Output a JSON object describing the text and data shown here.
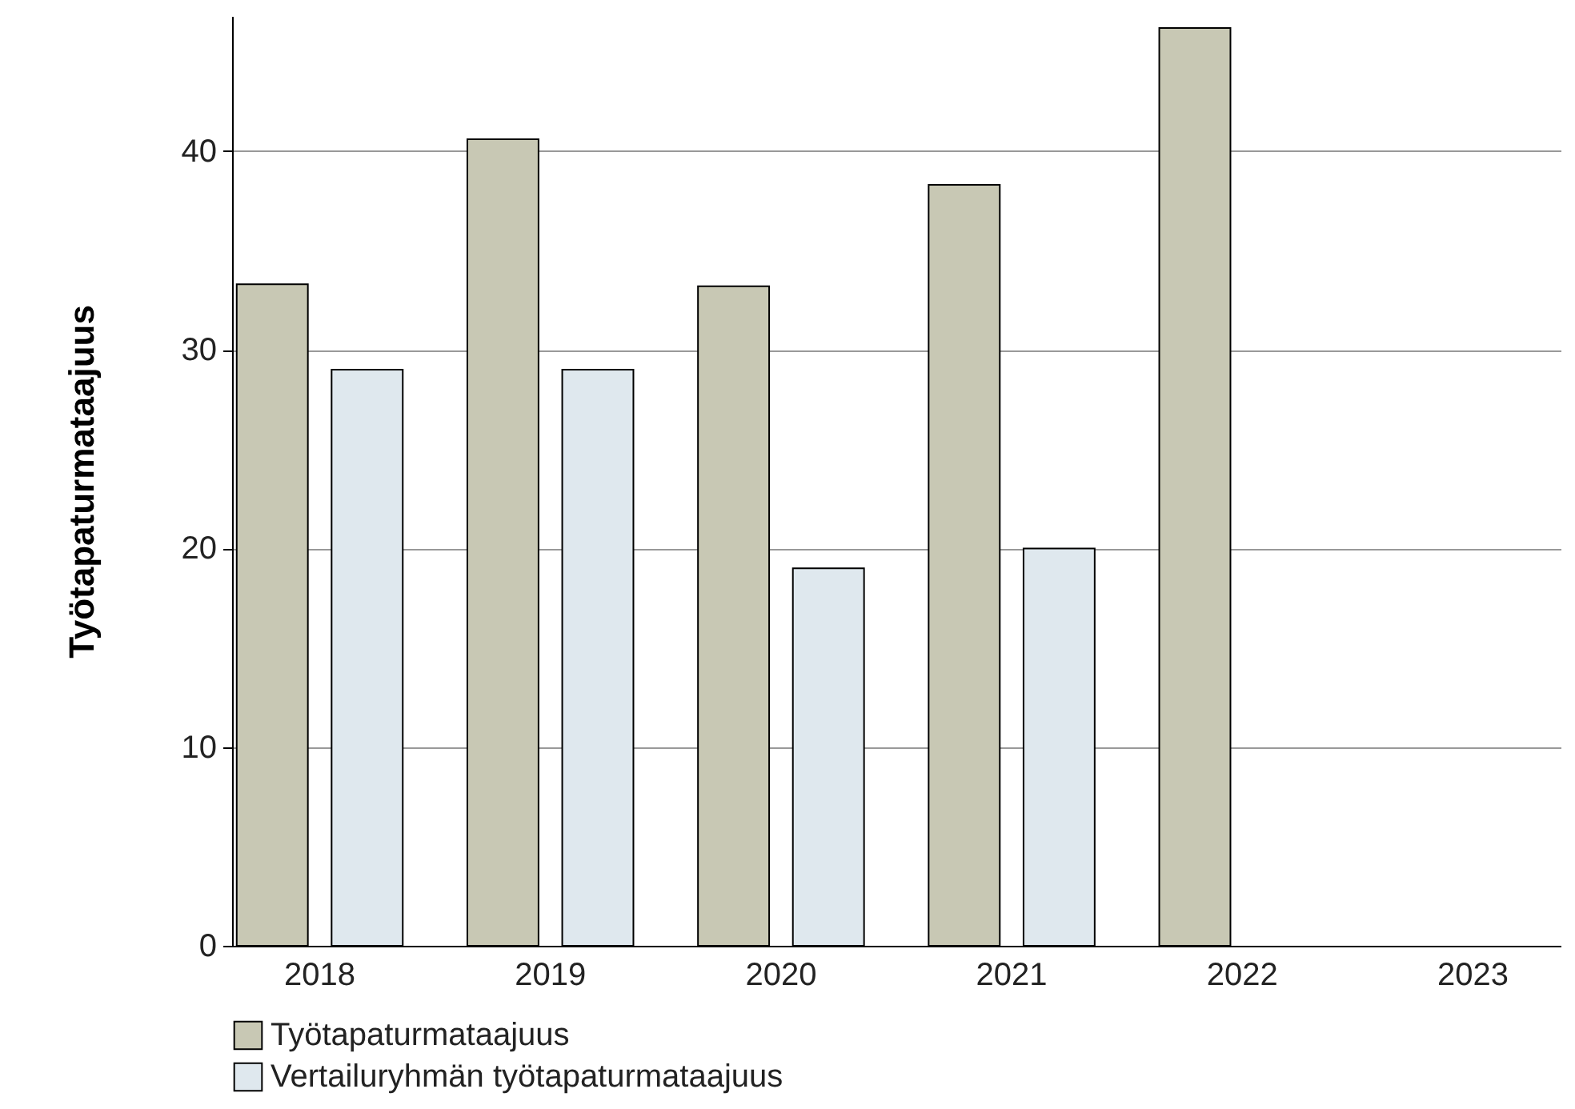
{
  "chart_data": {
    "type": "bar",
    "ylabel": "Työtapaturmataajuus",
    "categories": [
      "2018",
      "2019",
      "2020",
      "2021",
      "2022",
      "2023"
    ],
    "series": [
      {
        "name": "Työtapaturmataajuus",
        "color": "#c8c8b4",
        "values": [
          33.3,
          40.6,
          33.2,
          38.3,
          46.2,
          null
        ]
      },
      {
        "name": "Vertailuryhmän työtapaturmataajuus",
        "color": "#dfe8ee",
        "values": [
          29.0,
          29.0,
          19.0,
          20.0,
          null,
          null
        ]
      }
    ],
    "ylim": [
      0,
      46.8
    ],
    "yticks": [
      0,
      10,
      20,
      30,
      40
    ],
    "grid": "y",
    "legend": "bottom"
  }
}
